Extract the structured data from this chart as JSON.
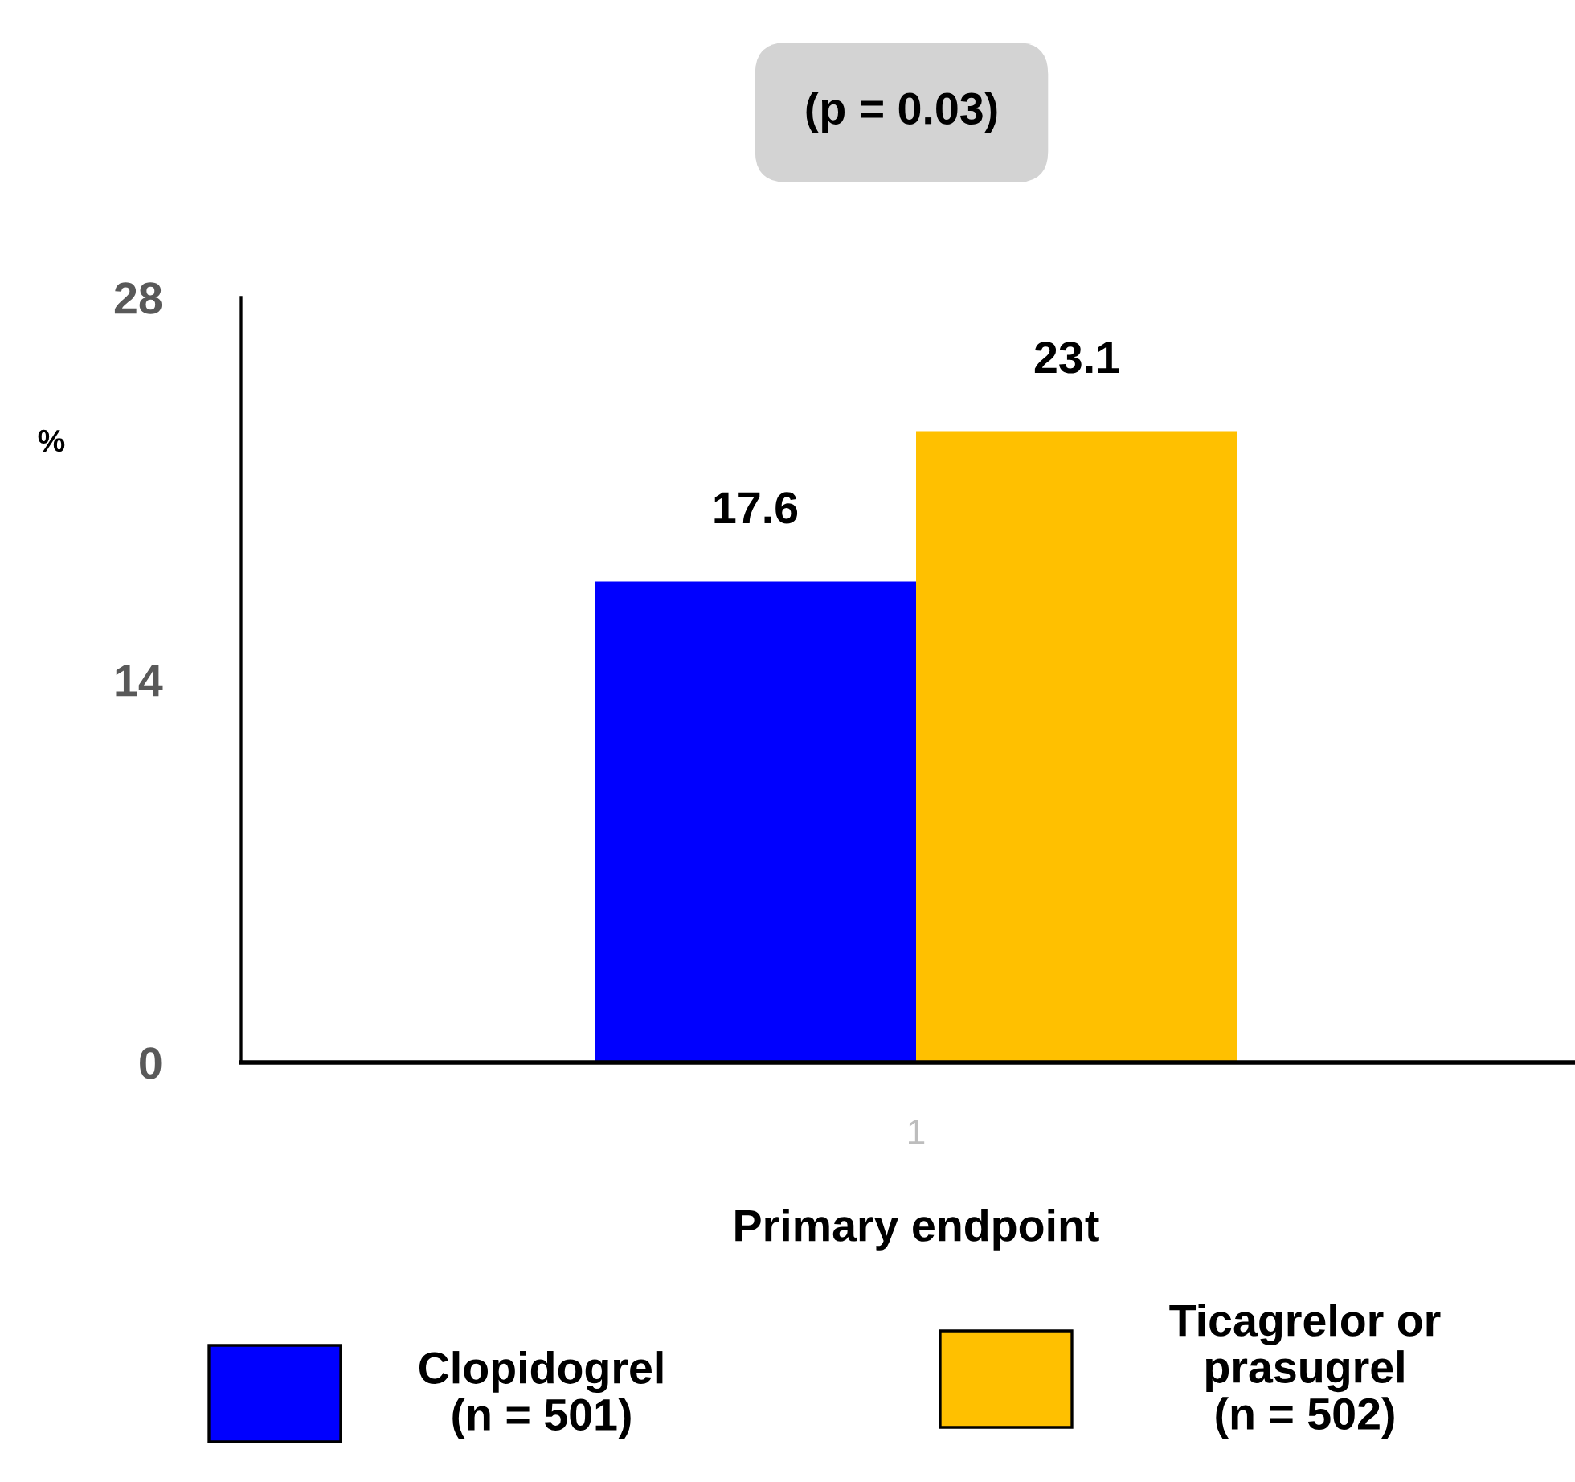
{
  "chart_data": {
    "type": "bar",
    "title": "(p = 0.03)",
    "xlabel": "Primary endpoint",
    "ylabel": "%",
    "categories": [
      "1"
    ],
    "series": [
      {
        "name": "Clopidogrel\n(n = 501)",
        "color": "#0000ff",
        "values": [
          17.6
        ]
      },
      {
        "name": "Ticagrelor or\nprasugrel\n(n = 502)",
        "color": "#ffc000",
        "values": [
          23.1
        ]
      }
    ],
    "ylim": [
      0,
      28
    ],
    "yticks": [
      0,
      14,
      28
    ],
    "data_labels": true,
    "grid": false,
    "legend": "bottom"
  }
}
